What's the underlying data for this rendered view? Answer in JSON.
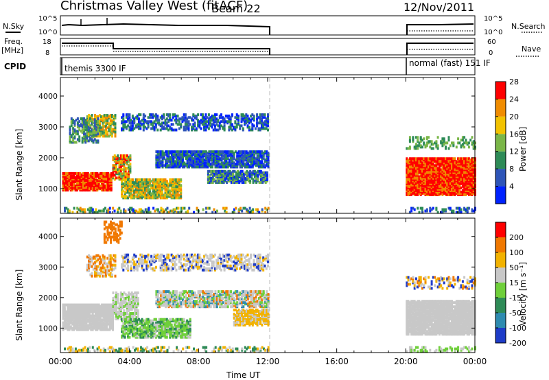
{
  "header": {
    "station": "Christmas Valley West (fitACF)",
    "beam": "Beam 22",
    "date": "12/Nov/2011"
  },
  "panels": {
    "nsky_label": "N.Sky",
    "nsky_tick_top": "10^5",
    "nsky_tick_bottom": "10^0",
    "nsearch_label": "N.Search",
    "nsearch_tick_top": "10^5",
    "nsearch_tick_bottom": "10^0",
    "freq_label": "Freq.",
    "freq_unit": "[MHz]",
    "freq_tick_top": "18",
    "freq_tick_bottom": "8",
    "nave_label": "Nave",
    "nave_tick_top": "60",
    "nave_tick_bottom": "0",
    "cpid_label": "CPID",
    "cpid_mode_1": "themis 3300 IF",
    "cpid_mode_2": "normal (fast) 151 IF"
  },
  "chart_data": [
    {
      "type": "heatmap",
      "name": "power",
      "ylabel": "Slant Range [km]",
      "x_range_hours": [
        0,
        24
      ],
      "ylim": [
        200,
        4600
      ],
      "y_ticks": [
        "1000",
        "2000",
        "3000",
        "4000"
      ],
      "colorbar_label": "Power [dB]",
      "colorbar_ticks": [
        "4",
        "8",
        "12",
        "16",
        "20",
        "24",
        "28"
      ],
      "colors": [
        "#0022ff",
        "#2e55b8",
        "#2e8b57",
        "#7ab648",
        "#f2c200",
        "#f08c00",
        "#ff0000"
      ]
    },
    {
      "type": "heatmap",
      "name": "velocity",
      "ylabel": "Slant Range [km]",
      "x_range_hours": [
        0,
        24
      ],
      "ylim": [
        200,
        4600
      ],
      "y_ticks": [
        "1000",
        "2000",
        "3000",
        "4000"
      ],
      "colorbar_label": "Velocity [m s⁻¹]",
      "colorbar_ticks": [
        "200",
        "100",
        "50",
        "15",
        "-15",
        "-50",
        "-100",
        "-200"
      ],
      "colors": [
        "#1e3cc8",
        "#2e8bb0",
        "#2e8b57",
        "#6fcf3a",
        "#c8c8c8",
        "#f2b200",
        "#f07800",
        "#ff0000"
      ],
      "xlabel": "Time UT",
      "x_ticks": [
        "00:00",
        "04:00",
        "08:00",
        "12:00",
        "16:00",
        "20:00",
        "00:00"
      ]
    }
  ]
}
